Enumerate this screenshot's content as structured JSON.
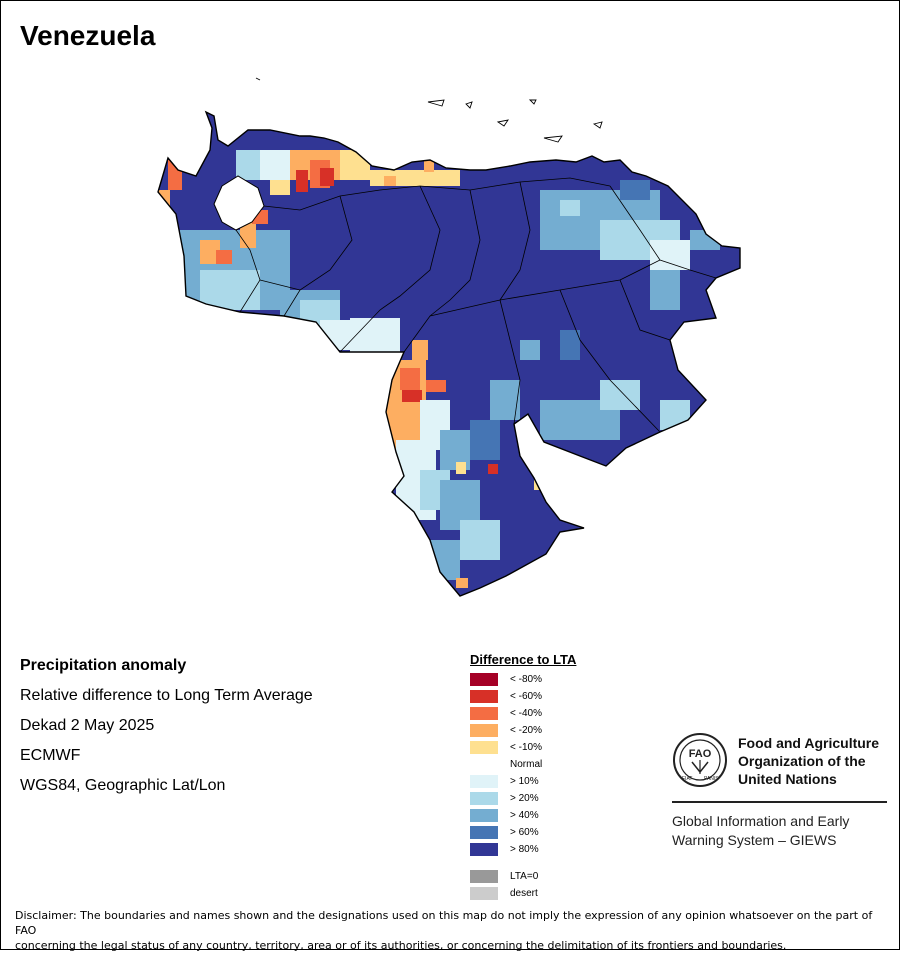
{
  "map": {
    "title": "Venezuela"
  },
  "info": {
    "line1": "Precipitation anomaly",
    "line2": "Relative difference to Long Term Average",
    "line3": "Dekad 2 May 2025",
    "line4": "ECMWF",
    "line5": "WGS84, Geographic Lat/Lon"
  },
  "legend": {
    "title": "Difference to LTA",
    "items": [
      {
        "label": "< -80%",
        "color": "#a50026"
      },
      {
        "label": "< -60%",
        "color": "#d73027"
      },
      {
        "label": "< -40%",
        "color": "#f46d43"
      },
      {
        "label": "< -20%",
        "color": "#fdae61"
      },
      {
        "label": "< -10%",
        "color": "#fee090"
      },
      {
        "label": "Normal",
        "color": "#ffffff"
      },
      {
        "label": "> 10%",
        "color": "#e0f3f8"
      },
      {
        "label": "> 20%",
        "color": "#abd9e9"
      },
      {
        "label": "> 40%",
        "color": "#74add1"
      },
      {
        "label": "> 60%",
        "color": "#4575b4"
      },
      {
        "label": "> 80%",
        "color": "#313695"
      }
    ],
    "extra": [
      {
        "label": "LTA=0",
        "color": "#999999"
      },
      {
        "label": "desert",
        "color": "#cccccc"
      }
    ]
  },
  "logo": {
    "org_line1": "Food and Agriculture",
    "org_line2": "Organization of the",
    "org_line3": "United Nations",
    "emblem_text": "FAO",
    "motto_left": "FIAT",
    "motto_right": "PANIS",
    "giews_line1": "Global Information and Early",
    "giews_line2": "Warning System – GIEWS"
  },
  "disclaimer": {
    "line1": "Disclaimer: The boundaries and names shown and the designations used on this map do not imply the expression of any opinion whatsoever on the part of FAO",
    "line2": "concerning the legal status of any country, territory, area or of its authorities, or concerning the delimitation of its frontiers and boundaries."
  }
}
